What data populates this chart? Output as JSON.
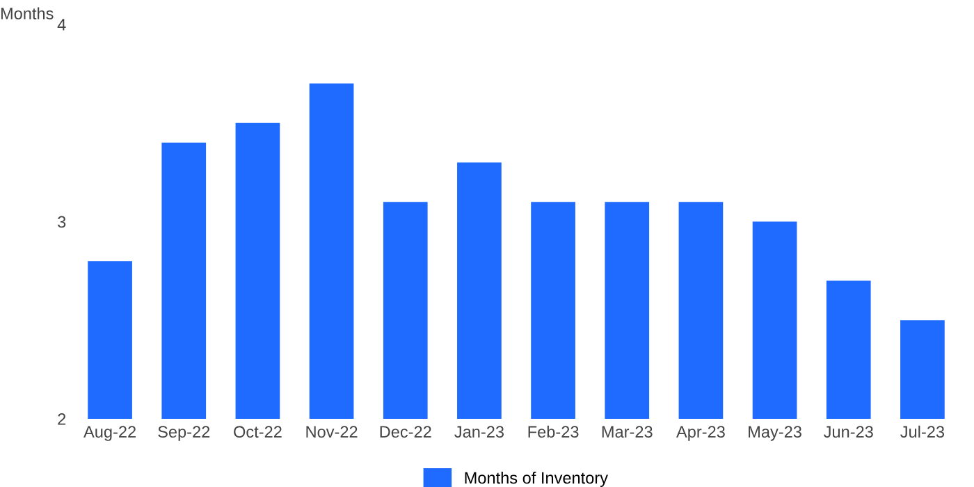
{
  "chart_data": {
    "type": "bar",
    "ylabel": "Months",
    "categories": [
      "Aug-22",
      "Sep-22",
      "Oct-22",
      "Nov-22",
      "Dec-22",
      "Jan-23",
      "Feb-23",
      "Mar-23",
      "Apr-23",
      "May-23",
      "Jun-23",
      "Jul-23"
    ],
    "series": [
      {
        "name": "Months of Inventory",
        "color": "#1f6bff",
        "values": [
          2.8,
          3.4,
          3.5,
          3.7,
          3.1,
          3.3,
          3.1,
          3.1,
          3.1,
          3.0,
          2.7,
          2.5
        ]
      }
    ],
    "ylim": [
      2,
      4
    ],
    "yticks": [
      2,
      3,
      4
    ],
    "grid": false,
    "legend": "bottom"
  }
}
